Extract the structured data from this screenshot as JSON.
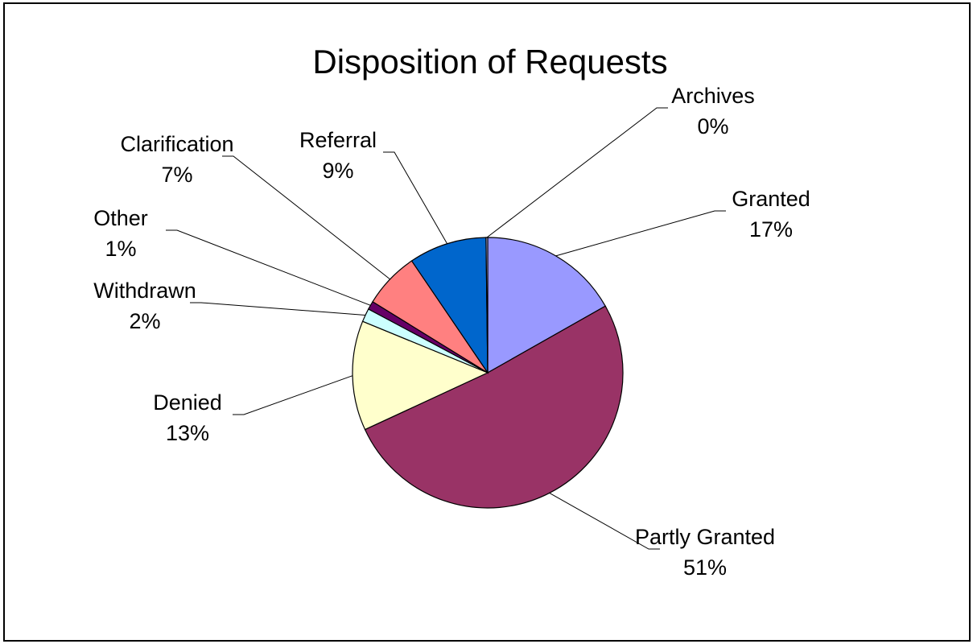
{
  "chart_data": {
    "type": "pie",
    "title": "Disposition of Requests",
    "slices": [
      {
        "name": "Granted",
        "percent_label": "17%",
        "value": 16.8,
        "color": "#9999ff"
      },
      {
        "name": "Partly Granted",
        "percent_label": "51%",
        "value": 51.3,
        "color": "#993366"
      },
      {
        "name": "Denied",
        "percent_label": "13%",
        "value": 13.1,
        "color": "#ffffcc"
      },
      {
        "name": "Withdrawn",
        "percent_label": "2%",
        "value": 1.6,
        "color": "#ccffff"
      },
      {
        "name": "Other",
        "percent_label": "1%",
        "value": 1.0,
        "color": "#660066"
      },
      {
        "name": "Clarification",
        "percent_label": "7%",
        "value": 6.7,
        "color": "#ff8080"
      },
      {
        "name": "Referral",
        "percent_label": "9%",
        "value": 9.3,
        "color": "#0066cc"
      },
      {
        "name": "Archives",
        "percent_label": "0%",
        "value": 0.2,
        "color": "#ccccff"
      }
    ],
    "legend": "none",
    "data_labels": "category-name-and-percent"
  }
}
